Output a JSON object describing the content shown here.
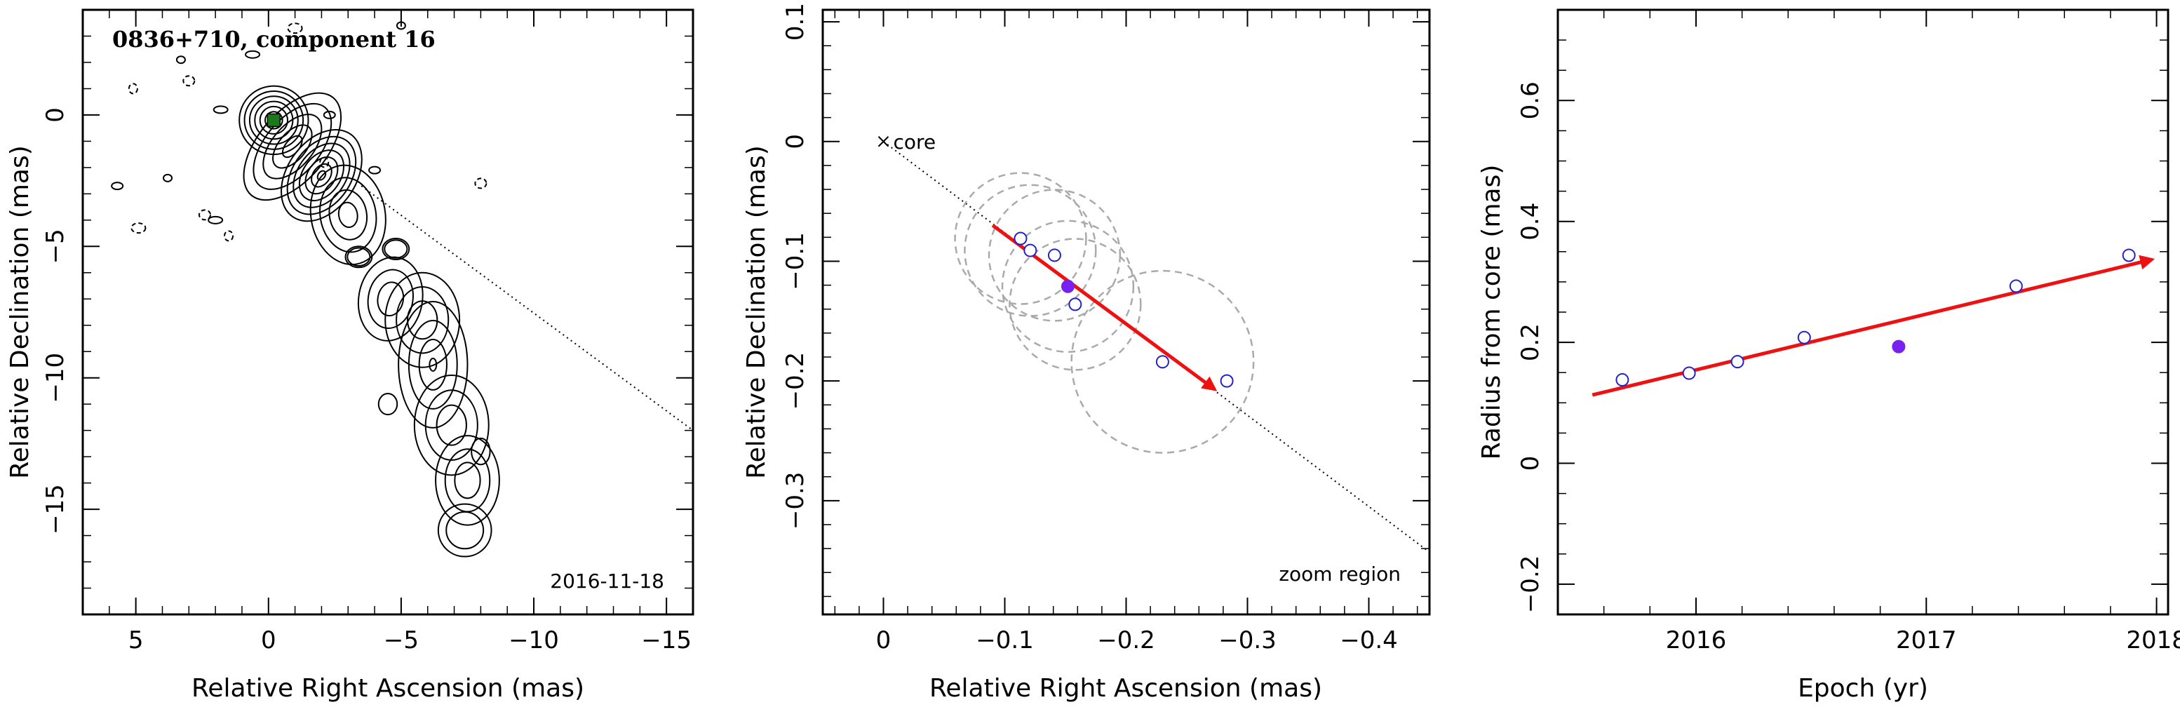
{
  "colors": {
    "axis": "#000000",
    "contour": "#000000",
    "core_marker": "#1a7a1a",
    "arrow": "#ee1111",
    "open_point": "#2222cc",
    "filled_point": "#7722ee",
    "uncertainty_circle": "#aaaaaa",
    "track_line": "#000000"
  },
  "chart_data": [
    {
      "type": "contour",
      "title": "0836+710, component 16",
      "annotation": "2016-11-18",
      "xlabel": "Relative Right Ascension (mas)",
      "ylabel": "Relative Declination (mas)",
      "xlim": [
        7,
        -16
      ],
      "ylim": [
        -19,
        4
      ],
      "xticks": [
        5,
        0,
        -5,
        -10,
        -15
      ],
      "yticks": [
        0,
        -5,
        -10,
        -15
      ],
      "x_tick_labels": [
        "5",
        "0",
        "−5",
        "−10",
        "−15"
      ],
      "y_tick_labels": [
        "0",
        "−5",
        "−10",
        "−15"
      ],
      "core_marker": [
        -0.2,
        -0.2
      ],
      "track_line": [
        [
          -3.5,
          -2.7
        ],
        [
          -16,
          -12
        ]
      ],
      "grid": false
    },
    {
      "type": "scatter",
      "annotation": "zoom region",
      "core_label": "core",
      "xlabel": "Relative Right Ascension (mas)",
      "ylabel": "Relative Declination (mas)",
      "xlim": [
        0.05,
        -0.45
      ],
      "ylim": [
        -0.395,
        0.11
      ],
      "xticks": [
        0,
        -0.1,
        -0.2,
        -0.3,
        -0.4
      ],
      "yticks": [
        0.1,
        0,
        -0.1,
        -0.2,
        -0.3
      ],
      "x_tick_labels": [
        "0",
        "−0.1",
        "−0.2",
        "−0.3",
        "−0.4"
      ],
      "y_tick_labels": [
        "0.1",
        "0",
        "−0.1",
        "−0.2",
        "−0.3"
      ],
      "track_line": [
        [
          0,
          0
        ],
        [
          -0.45,
          -0.343
        ]
      ],
      "open_points": [
        {
          "x": -0.113,
          "y": -0.081
        },
        {
          "x": -0.121,
          "y": -0.091
        },
        {
          "x": -0.141,
          "y": -0.095
        },
        {
          "x": -0.158,
          "y": -0.136
        },
        {
          "x": -0.23,
          "y": -0.184
        },
        {
          "x": -0.283,
          "y": -0.2
        }
      ],
      "filled_points": [
        {
          "x": -0.152,
          "y": -0.121
        }
      ],
      "uncertainty_circles": [
        {
          "x": -0.113,
          "y": -0.081,
          "r": 0.054
        },
        {
          "x": -0.121,
          "y": -0.091,
          "r": 0.054
        },
        {
          "x": -0.141,
          "y": -0.095,
          "r": 0.054
        },
        {
          "x": -0.158,
          "y": -0.136,
          "r": 0.054
        },
        {
          "x": -0.152,
          "y": -0.121,
          "r": 0.054
        },
        {
          "x": -0.23,
          "y": -0.184,
          "r": 0.075
        }
      ],
      "arrow": {
        "from": [
          -0.09,
          -0.07
        ],
        "to": [
          -0.273,
          -0.207
        ]
      },
      "grid": false
    },
    {
      "type": "scatter",
      "xlabel": "Epoch (yr)",
      "ylabel": "Radius from core (mas)",
      "xlim": [
        2015.4,
        2018.05
      ],
      "ylim": [
        -0.25,
        0.75
      ],
      "xticks": [
        2016,
        2017,
        2018
      ],
      "yticks": [
        -0.2,
        0,
        0.2,
        0.4,
        0.6
      ],
      "x_tick_labels": [
        "2016",
        "2017",
        "2018"
      ],
      "y_tick_labels": [
        "−0.2",
        "0",
        "0.2",
        "0.4",
        "0.6"
      ],
      "open_points": [
        {
          "x": 2015.68,
          "y": 0.138
        },
        {
          "x": 2015.97,
          "y": 0.149
        },
        {
          "x": 2016.18,
          "y": 0.168
        },
        {
          "x": 2016.47,
          "y": 0.208
        },
        {
          "x": 2017.39,
          "y": 0.293
        },
        {
          "x": 2017.88,
          "y": 0.344
        }
      ],
      "filled_points": [
        {
          "x": 2016.88,
          "y": 0.193
        }
      ],
      "arrow": {
        "from": [
          2015.55,
          0.113
        ],
        "to": [
          2017.98,
          0.337
        ]
      },
      "grid": false
    }
  ]
}
